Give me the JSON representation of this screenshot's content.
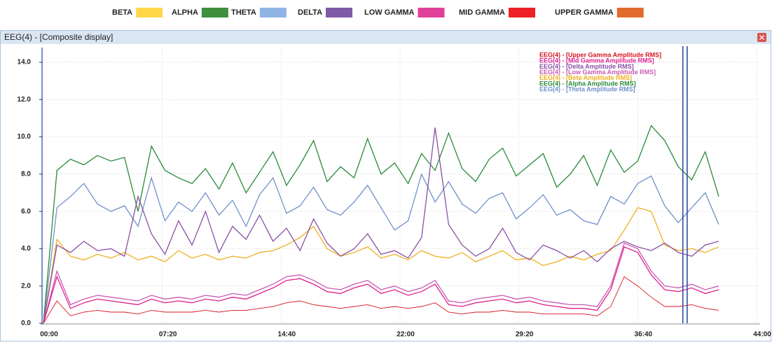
{
  "header_legend": [
    {
      "label": "BETA",
      "color": "#ffd84a"
    },
    {
      "label": "ALPHA",
      "color": "#3f8f3f"
    },
    {
      "label": "THETA",
      "color": "#8fb4e3"
    },
    {
      "label": "DELTA",
      "color": "#7f5aa6"
    },
    {
      "label": "LOW GAMMA",
      "color": "#e0409a"
    },
    {
      "label": "MID GAMMA",
      "color": "#ee2026"
    },
    {
      "label": "UPPER GAMMA",
      "color": "#e26a2c"
    }
  ],
  "window_title": "EEG(4) - [Composite display]",
  "chart_data": {
    "type": "line",
    "x": [
      0,
      50,
      100,
      150,
      200,
      250,
      300,
      350,
      400,
      450,
      500,
      550,
      600,
      650,
      700,
      750,
      800,
      850,
      900,
      950,
      1000,
      1050,
      1100,
      1150,
      1200,
      1250,
      1300,
      1350,
      1400,
      1450,
      1500,
      1550,
      1600,
      1650,
      1700,
      1750,
      1800,
      1850,
      1900,
      1950,
      2000,
      2050,
      2100,
      2150,
      2200,
      2250,
      2300,
      2350,
      2400,
      2450,
      2500
    ],
    "series": [
      {
        "name": "EEG(4) - [Upper Gamma Amplitude RMS]",
        "color": "#d8141e",
        "values": [
          0,
          1.2,
          0.4,
          0.6,
          0.7,
          0.6,
          0.6,
          0.5,
          0.7,
          0.6,
          0.6,
          0.6,
          0.7,
          0.6,
          0.7,
          0.7,
          0.8,
          0.9,
          1.1,
          1.2,
          1.0,
          0.9,
          0.8,
          0.9,
          1.0,
          0.8,
          0.9,
          0.8,
          0.9,
          1.1,
          0.6,
          0.5,
          0.6,
          0.6,
          0.7,
          0.6,
          0.6,
          0.5,
          0.5,
          0.5,
          0.5,
          0.4,
          0.9,
          2.5,
          2.0,
          1.4,
          0.9,
          0.9,
          1.0,
          0.8,
          0.7
        ]
      },
      {
        "name": "EEG(4) - [Mid Gamma Amplitude RMS]",
        "color": "#e0208f",
        "values": [
          0,
          2.5,
          0.8,
          1.1,
          1.3,
          1.2,
          1.1,
          1.0,
          1.3,
          1.1,
          1.2,
          1.1,
          1.3,
          1.2,
          1.4,
          1.3,
          1.6,
          1.9,
          2.3,
          2.4,
          2.1,
          1.7,
          1.6,
          1.9,
          2.1,
          1.6,
          1.8,
          1.5,
          1.7,
          2.1,
          1.0,
          0.9,
          1.1,
          1.2,
          1.3,
          1.1,
          1.2,
          1.0,
          0.9,
          0.8,
          0.8,
          0.7,
          1.8,
          4.1,
          3.8,
          2.6,
          1.8,
          1.7,
          1.9,
          1.6,
          1.8
        ]
      },
      {
        "name": "EEG(4) - [Delta Amplitude RMS]",
        "color": "#8a4fa8",
        "values": [
          0,
          4.2,
          3.8,
          4.4,
          3.9,
          4.0,
          3.6,
          6.8,
          4.8,
          3.7,
          5.5,
          4.2,
          6.0,
          3.8,
          5.2,
          4.5,
          5.8,
          4.4,
          5.1,
          3.9,
          5.6,
          4.3,
          3.6,
          4.0,
          4.8,
          3.7,
          3.9,
          3.5,
          4.6,
          10.5,
          5.3,
          4.2,
          3.6,
          4.0,
          5.1,
          3.8,
          3.4,
          4.2,
          3.9,
          3.5,
          3.9,
          3.3,
          4.0,
          4.4,
          4.1,
          3.9,
          4.3,
          3.8,
          3.6,
          4.2,
          4.4
        ]
      },
      {
        "name": "EEG(4) - [Low Gamma Amplitude RMS]",
        "color": "#c85ab4",
        "values": [
          0,
          2.8,
          1.0,
          1.3,
          1.5,
          1.4,
          1.3,
          1.2,
          1.5,
          1.3,
          1.4,
          1.3,
          1.5,
          1.4,
          1.6,
          1.5,
          1.8,
          2.1,
          2.5,
          2.6,
          2.3,
          1.9,
          1.8,
          2.1,
          2.3,
          1.8,
          2.0,
          1.7,
          1.9,
          2.3,
          1.2,
          1.1,
          1.3,
          1.4,
          1.5,
          1.3,
          1.4,
          1.2,
          1.1,
          1.0,
          1.0,
          0.9,
          2.0,
          4.3,
          4.0,
          2.8,
          2.0,
          1.9,
          2.1,
          1.8,
          2.0
        ]
      },
      {
        "name": "EEG(4) - [Beta Amplitude RMS]",
        "color": "#f0b020",
        "values": [
          0,
          4.5,
          3.6,
          3.4,
          3.7,
          3.5,
          3.8,
          3.4,
          3.6,
          3.3,
          3.9,
          3.5,
          3.7,
          3.4,
          3.6,
          3.5,
          3.8,
          3.9,
          4.2,
          4.6,
          5.2,
          4.0,
          3.6,
          3.8,
          4.1,
          3.5,
          3.7,
          3.4,
          3.9,
          3.6,
          3.5,
          3.8,
          3.3,
          3.6,
          3.9,
          3.4,
          3.5,
          3.1,
          3.3,
          3.6,
          3.4,
          3.7,
          3.9,
          5.0,
          6.2,
          6.0,
          4.2,
          3.9,
          4.0,
          3.8,
          4.1
        ]
      },
      {
        "name": "EEG(4) - [Alpha Amplitude RMS]",
        "color": "#2a8a3a",
        "values": [
          0,
          8.2,
          8.8,
          8.5,
          9.0,
          8.7,
          8.9,
          6.0,
          9.5,
          8.2,
          7.8,
          7.5,
          8.3,
          7.2,
          8.6,
          7.0,
          8.1,
          9.2,
          7.4,
          8.5,
          9.8,
          7.6,
          8.4,
          7.8,
          9.9,
          8.0,
          8.6,
          7.5,
          9.1,
          8.2,
          10.2,
          8.3,
          7.6,
          8.8,
          9.4,
          7.9,
          8.5,
          9.1,
          7.3,
          8.0,
          9.0,
          7.4,
          9.3,
          8.1,
          8.7,
          10.6,
          9.8,
          8.4,
          7.7,
          9.2,
          6.8
        ]
      },
      {
        "name": "EEG(4) - [Theta Amplitude RMS]",
        "color": "#7090cc",
        "values": [
          0,
          6.2,
          6.8,
          7.5,
          6.4,
          6.0,
          6.3,
          5.2,
          7.8,
          5.5,
          6.5,
          6.0,
          7.0,
          5.8,
          6.6,
          5.2,
          6.9,
          7.8,
          5.9,
          6.3,
          7.3,
          6.1,
          5.8,
          6.5,
          7.4,
          6.2,
          5.0,
          5.5,
          8.0,
          6.5,
          7.6,
          6.4,
          5.9,
          6.7,
          7.0,
          5.6,
          6.2,
          6.9,
          5.8,
          6.1,
          5.5,
          5.3,
          6.8,
          6.4,
          7.5,
          7.9,
          6.3,
          5.4,
          6.2,
          7.0,
          5.3
        ]
      }
    ],
    "xlim": [
      0,
      2640
    ],
    "xticks": [
      {
        "value": 0,
        "label": "00:00"
      },
      {
        "value": 440,
        "label": "07:20"
      },
      {
        "value": 880,
        "label": "14:40"
      },
      {
        "value": 1320,
        "label": "22:00"
      },
      {
        "value": 1760,
        "label": "29:20"
      },
      {
        "value": 2200,
        "label": "36:40"
      },
      {
        "value": 2640,
        "label": "44:00"
      }
    ],
    "ylim": [
      0,
      14
    ],
    "yticks": [
      {
        "value": 0,
        "label": "0.0"
      },
      {
        "value": 2,
        "label": "2.0"
      },
      {
        "value": 4,
        "label": "4.0"
      },
      {
        "value": 6,
        "label": "6.0"
      },
      {
        "value": 8,
        "label": "8.0"
      },
      {
        "value": 10,
        "label": "10.0"
      },
      {
        "value": 12,
        "label": "12.0"
      },
      {
        "value": 14,
        "label": "14.0"
      }
    ],
    "grid": true,
    "cursors": [
      2367,
      2383
    ]
  }
}
